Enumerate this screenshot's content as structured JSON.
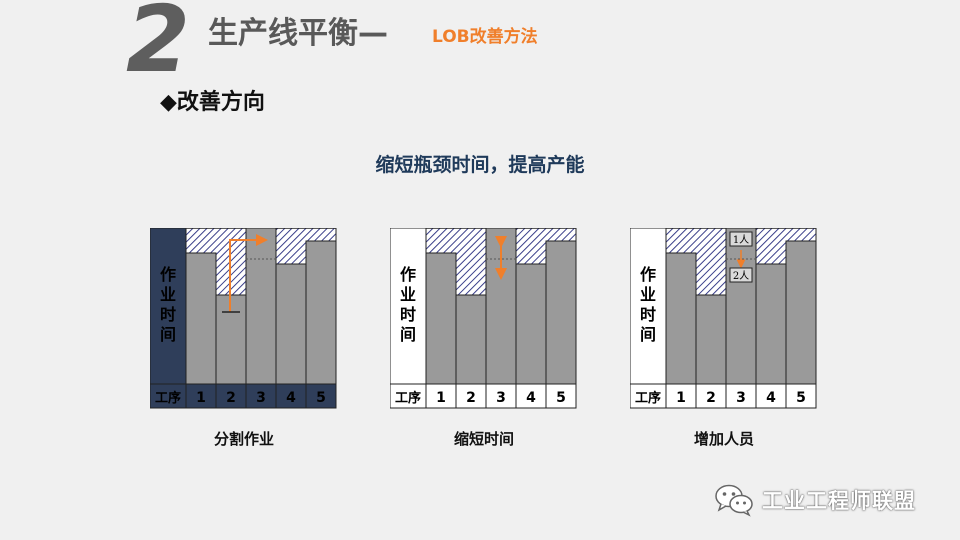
{
  "slide": {
    "number": "2",
    "title": "生产线平衡—",
    "subtitle": "LOB改善方法",
    "section": "◆改善方向",
    "headline": "缩短瓶颈时间，提高产能"
  },
  "diagrams": [
    {
      "caption": "分割作业",
      "y_label": [
        "作",
        "业",
        "时",
        "间"
      ],
      "x_label": "工序",
      "stations": [
        "1",
        "2",
        "3",
        "4",
        "5"
      ],
      "tags": []
    },
    {
      "caption": "缩短时间",
      "y_label": [
        "作",
        "业",
        "时",
        "间"
      ],
      "x_label": "工序",
      "stations": [
        "1",
        "2",
        "3",
        "4",
        "5"
      ],
      "tags": []
    },
    {
      "caption": "增加人员",
      "y_label": [
        "作",
        "业",
        "时",
        "间"
      ],
      "x_label": "工序",
      "stations": [
        "1",
        "2",
        "3",
        "4",
        "5"
      ],
      "tags": [
        "1人",
        "2人"
      ]
    }
  ],
  "footer": {
    "brand": "工业工程师联盟",
    "icon": "wechat-icon"
  },
  "colors": {
    "accent": "#f07f2b",
    "bar": "#9a9a9a",
    "hatch": "#3a3f8a",
    "dark_axis": "#2f3e5a"
  }
}
